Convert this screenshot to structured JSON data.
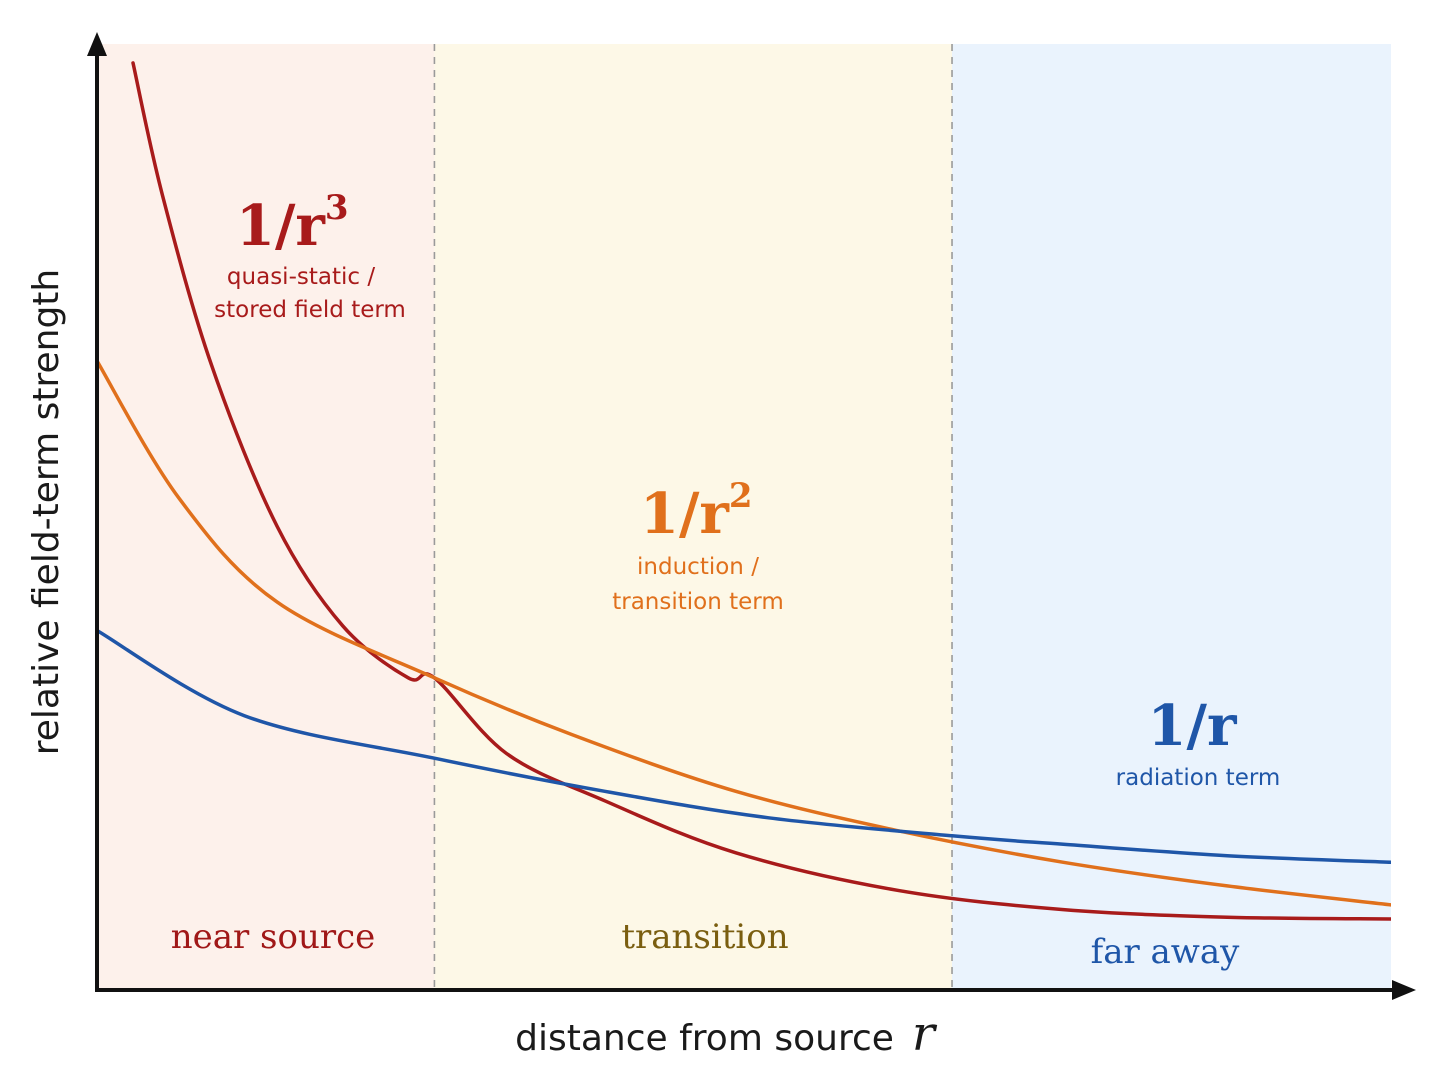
{
  "chart_data": {
    "type": "line",
    "title": "",
    "xlabel": "distance from source",
    "xlabel_var": "r",
    "ylabel": "relative field-term strength",
    "xlim": [
      0.05,
      4.0
    ],
    "ylim": [
      0,
      1
    ],
    "grid": false,
    "ticks": false,
    "legend": "none (inline curve labels)",
    "regions": [
      {
        "name": "near-source",
        "label": "near source",
        "x_start": 0.05,
        "x_end": 1.08,
        "fill": "#fdf1eb",
        "label_color": "#a01818"
      },
      {
        "name": "transition",
        "label": "transition",
        "x_start": 1.08,
        "x_end": 2.66,
        "fill": "#fdf8e7",
        "label_color": "#7a5e10"
      },
      {
        "name": "far-away",
        "label": "far away",
        "x_start": 2.66,
        "x_end": 4.0,
        "fill": "#eaf3fd",
        "label_color": "#1f56a8"
      }
    ],
    "series": [
      {
        "name": "1/r^3",
        "formula_base": "1/r",
        "formula_exp": "3",
        "description_lines": [
          "quasi-static /",
          "stored field term"
        ],
        "color": "#a81b1b",
        "x": [
          0.16,
          0.25,
          0.4,
          0.6,
          0.8,
          1.0,
          1.08,
          1.3,
          1.6,
          2.0,
          2.5,
          3.0,
          3.5,
          4.0
        ],
        "y": [
          0.98,
          0.84,
          0.66,
          0.49,
          0.385,
          0.33,
          0.33,
          0.25,
          0.2,
          0.145,
          0.105,
          0.085,
          0.077,
          0.075
        ]
      },
      {
        "name": "1/r^2",
        "formula_base": "1/r",
        "formula_exp": "2",
        "description_lines": [
          "induction /",
          "transition term"
        ],
        "color": "#e0701c",
        "x": [
          0.05,
          0.3,
          0.6,
          1.08,
          1.5,
          2.0,
          2.5,
          3.0,
          3.5,
          4.0
        ],
        "y": [
          0.665,
          0.52,
          0.41,
          0.33,
          0.27,
          0.21,
          0.168,
          0.135,
          0.11,
          0.09
        ]
      },
      {
        "name": "1/r",
        "formula_base": "1/r",
        "formula_exp": "",
        "description_lines": [
          "radiation term"
        ],
        "color": "#1f56a8",
        "x": [
          0.05,
          0.5,
          1.08,
          1.6,
          2.1,
          2.66,
          3.0,
          3.5,
          4.0
        ],
        "y": [
          0.38,
          0.29,
          0.245,
          0.21,
          0.182,
          0.163,
          0.154,
          0.142,
          0.135
        ]
      }
    ]
  }
}
